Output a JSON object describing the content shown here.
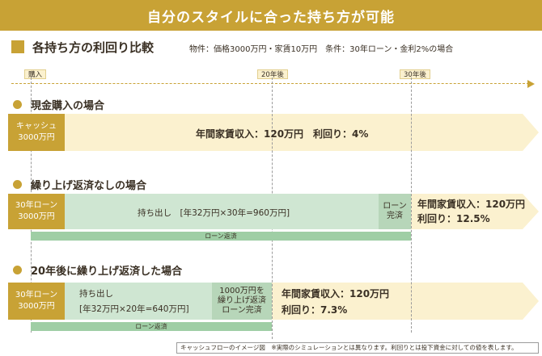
{
  "title": "自分のスタイルに合った持ち方が可能",
  "heading": "各持ち方の利回り比較",
  "conditions": "物件：価格3000万円・家賃10万円　条件：30年ローン・金利2%の場合",
  "timeline": {
    "start_label": "購入",
    "mid_label": "20年後",
    "end_label": "30年後"
  },
  "cases": [
    {
      "title": "現金購入の場合",
      "box_line1": "キャッシュ",
      "box_line2": "3000万円",
      "result": "年間家賃収入：120万円　利回り：4%"
    },
    {
      "title": "繰り上げ返済なしの場合",
      "box_line1": "30年ローン",
      "box_line2": "3000万円",
      "outflow": "持ち出し　[年32万円×30年=960万円]",
      "complete_line1": "ローン",
      "complete_line2": "完済",
      "result_line1": "年間家賃収入：120万円",
      "result_line2": "利回り：12.5%",
      "repay_label": "ローン返済"
    },
    {
      "title": "20年後に繰り上げ返済した場合",
      "box_line1": "30年ローン",
      "box_line2": "3000万円",
      "outflow_line1": "持ち出し",
      "outflow_line2": "[年32万円×20年=640万円]",
      "complete_line1": "1000万円を",
      "complete_line2": "繰り上げ返済",
      "complete_line3": "ローン完済",
      "result_line1": "年間家賃収入：120万円",
      "result_line2": "利回り：7.3%",
      "repay_label": "ローン返済"
    }
  ],
  "footer": "キャッシュフローのイメージ図　※実際のシミュレーションとは異なります。利回りとは投下資金に対しての値を表します。",
  "colors": {
    "gold": "#c8a235",
    "light_yellow": "#fbf1cf",
    "green_light": "#cfe6d2",
    "green_dark": "#b7d6b9",
    "green_bar": "#9fcea5"
  }
}
